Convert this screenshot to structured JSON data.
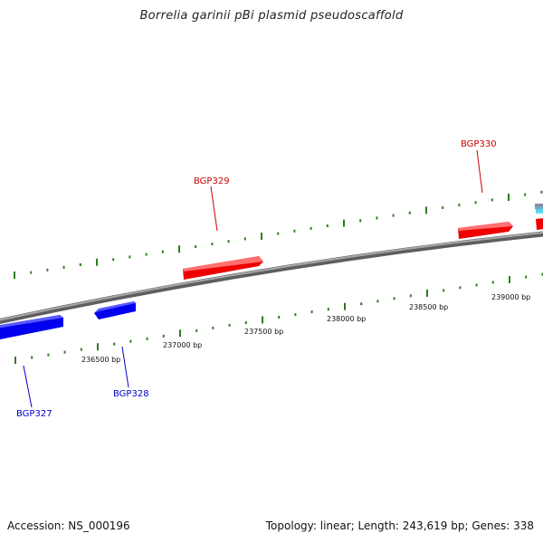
{
  "title": "Borrelia garinii pBi plasmid pseudoscaffold",
  "footer": {
    "accession": "Accession: NS_000196",
    "summary": "Topology: linear; Length: 243,619 bp; Genes: 338"
  },
  "colors": {
    "forward_gene": "#ff0000",
    "reverse_gene": "#0000ff",
    "backbone": "#808080",
    "tick": "#2e7d1f",
    "forward_label": "#cc0000",
    "reverse_label": "#0000cc",
    "scale_label": "#111111"
  },
  "genes": [
    {
      "name": "BGP327",
      "strand": "reverse"
    },
    {
      "name": "BGP328",
      "strand": "reverse"
    },
    {
      "name": "BGP329",
      "strand": "forward"
    },
    {
      "name": "BGP330",
      "strand": "forward"
    }
  ],
  "scale_labels": [
    "236500 bp",
    "237000 bp",
    "237500 bp",
    "238000 bp",
    "238500 bp",
    "239000 bp"
  ]
}
